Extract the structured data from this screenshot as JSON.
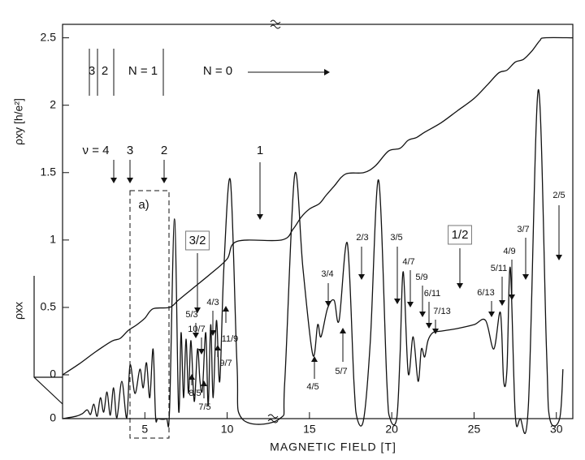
{
  "chart_data": {
    "type": "line",
    "xlabel": "MAGNETIC FIELD [T]",
    "ylabel": "ρxy [h/e²]",
    "y2label": "ρxx",
    "xlim": [
      0,
      31
    ],
    "xticks": [
      5,
      10,
      15,
      20,
      25,
      30
    ],
    "ylim": [
      0,
      2.6
    ],
    "yticks": [
      0,
      0.5,
      1,
      1.5,
      2,
      2.5
    ],
    "y2lim": [
      0,
      1
    ],
    "y2ticks": [
      0
    ],
    "series": [
      {
        "color": "#111111",
        "x": [
          0,
          1,
          2,
          3,
          3.5,
          4,
          4.5,
          5,
          5.5,
          6.5,
          7,
          7.5,
          8,
          9,
          10,
          10.6,
          13.3,
          14,
          14.5,
          15,
          15.6,
          16,
          16.5,
          17.2,
          18.3,
          19,
          19.8,
          20.5,
          21,
          21.5,
          22,
          23,
          24,
          25,
          25.8,
          26.5,
          27,
          27.5,
          28,
          28.5,
          29,
          29.3,
          31
        ],
        "values": [
          0,
          0.08,
          0.17,
          0.25,
          0.27,
          0.33,
          0.37,
          0.42,
          0.49,
          0.5,
          0.55,
          0.6,
          0.65,
          0.75,
          0.86,
          0.99,
          1.0,
          1.08,
          1.17,
          1.23,
          1.27,
          1.33,
          1.4,
          1.49,
          1.5,
          1.55,
          1.66,
          1.68,
          1.74,
          1.76,
          1.8,
          1.87,
          1.96,
          2.05,
          2.15,
          2.24,
          2.26,
          2.32,
          2.34,
          2.4,
          2.48,
          2.5,
          2.5
        ]
      },
      {
        "color": "#111111",
        "axis": "y2",
        "x": [
          0,
          0.8,
          1.2,
          1.5,
          1.7,
          1.9,
          2.1,
          2.3,
          2.5,
          2.7,
          2.9,
          3.1,
          3.3,
          3.6,
          3.9,
          4.1,
          4.4,
          4.7,
          4.9,
          5.1,
          5.3,
          5.5,
          5.65,
          5.8,
          6.3,
          6.5,
          6.8,
          7.05,
          7.2,
          7.35,
          7.5,
          7.65,
          7.8,
          8.0,
          8.2,
          8.35,
          8.5,
          8.7,
          8.85,
          9.0,
          9.15,
          9.35,
          9.55,
          9.8,
          10.2,
          10.6,
          10.9,
          13.2,
          13.5,
          14.1,
          14.6,
          15.2,
          15.5,
          15.7,
          16.1,
          16.5,
          16.8,
          17.3,
          17.7,
          17.9,
          18.3,
          18.7,
          19.2,
          19.7,
          19.9,
          20.3,
          20.5,
          20.7,
          21.0,
          21.3,
          21.6,
          21.8,
          22.0,
          22.2,
          22.5,
          23.0,
          24.0,
          25.0,
          25.7,
          26.2,
          26.6,
          26.8,
          27.0,
          27.2,
          27.5,
          27.8,
          28.3,
          28.9,
          29.4,
          29.6,
          30.2,
          30.4
        ],
        "values": [
          0,
          0.006,
          0.013,
          0.023,
          0.011,
          0.038,
          0.006,
          0.055,
          0.017,
          0.07,
          0.009,
          0.081,
          0.002,
          0.098,
          0.002,
          0.141,
          0.066,
          0.13,
          0.081,
          0.147,
          0.055,
          0.183,
          0.006,
          0,
          0,
          0.023,
          0.525,
          0.023,
          0.226,
          0.055,
          0.209,
          0.066,
          0.205,
          0.045,
          0.183,
          0.098,
          0.077,
          0.226,
          0.034,
          0.247,
          0.055,
          0.258,
          0.098,
          0.397,
          0.625,
          0.141,
          0,
          0,
          0.098,
          0.64,
          0.397,
          0.168,
          0.247,
          0.215,
          0.29,
          0.311,
          0.258,
          0.461,
          0.098,
          0,
          0,
          0.205,
          0.627,
          0.098,
          0,
          0,
          0.162,
          0.386,
          0.119,
          0.215,
          0.098,
          0.183,
          0.162,
          0.205,
          0.226,
          0.23,
          0.237,
          0.247,
          0.258,
          0.183,
          0.279,
          0.098,
          0.13,
          0.397,
          0.013,
          0,
          0.034,
          0.864,
          0.183,
          0,
          0,
          0.13
        ]
      }
    ],
    "annotations": [
      "ν = 4",
      "3",
      "2",
      "1",
      "a)",
      "3/2",
      "5/3",
      "4/3",
      "10/7",
      "11/9",
      "9/7",
      "8/5",
      "7/5",
      "3/4",
      "2/3",
      "4/5",
      "5/7",
      "3/5",
      "4/7",
      "5/9",
      "6/11",
      "7/13",
      "1/2",
      "6/13",
      "5/11",
      "4/9",
      "3/7",
      "2/5",
      "3",
      "2",
      "N = 1",
      "N = 0"
    ]
  }
}
